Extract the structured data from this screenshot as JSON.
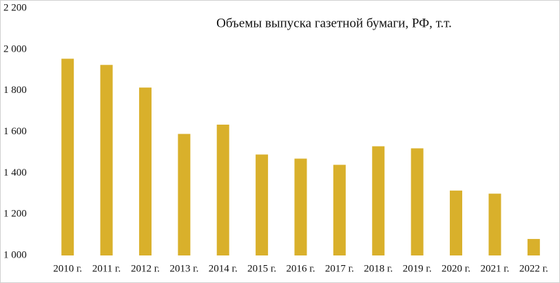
{
  "chart_data": {
    "type": "bar",
    "title": "Объемы выпуска газетной бумаги, РФ, т.т.",
    "categories": [
      "2010 г.",
      "2011 г.",
      "2012 г.",
      "2013 г.",
      "2014 г.",
      "2015 г.",
      "2016 г.",
      "2017 г.",
      "2018 г.",
      "2019 г.",
      "2020 г.",
      "2021 г.",
      "2022 г."
    ],
    "values": [
      1955,
      1925,
      1815,
      1590,
      1635,
      1490,
      1470,
      1440,
      1530,
      1520,
      1315,
      1300,
      1080
    ],
    "color": "#d9b02b",
    "ylim": [
      1000,
      2200
    ],
    "yticks": [
      {
        "value": 1000,
        "label": "1 000"
      },
      {
        "value": 1200,
        "label": "1 200"
      },
      {
        "value": 1400,
        "label": "1 400"
      },
      {
        "value": 1600,
        "label": "1 600"
      },
      {
        "value": 1800,
        "label": "1 800"
      },
      {
        "value": 2000,
        "label": "2 000"
      },
      {
        "value": 2200,
        "label": "2 200"
      }
    ],
    "grid": false
  }
}
